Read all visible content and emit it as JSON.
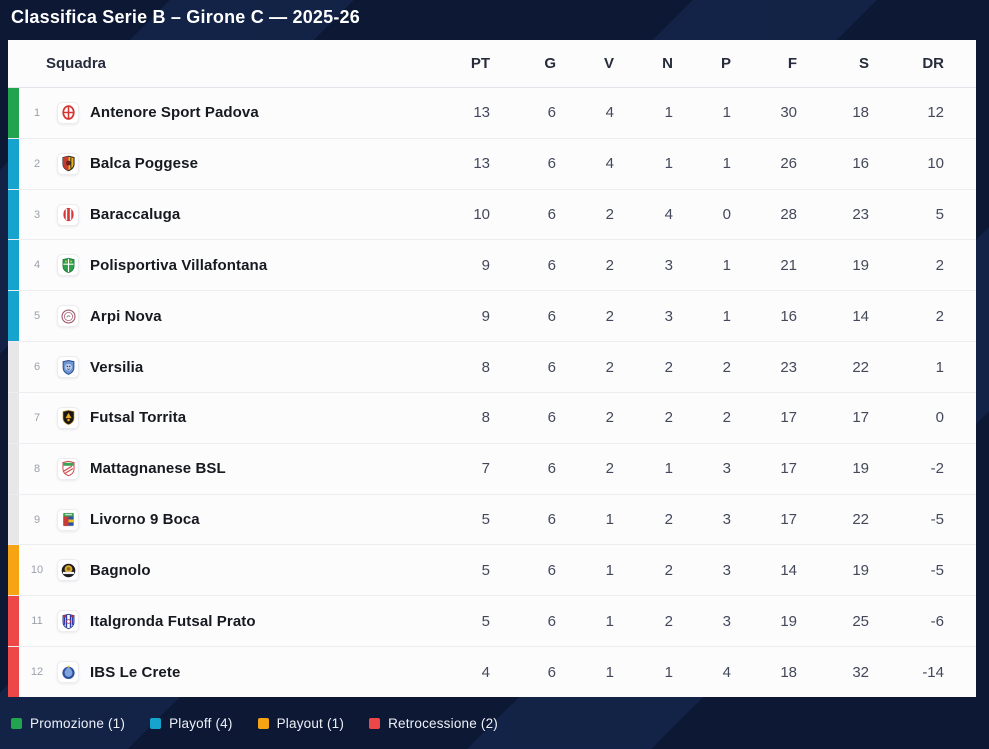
{
  "title": "Classifica Serie B – Girone C — 2025-26",
  "table": {
    "team_header": "Squadra",
    "stat_headers": [
      "PT",
      "G",
      "V",
      "N",
      "P",
      "F",
      "S",
      "DR"
    ],
    "rows": [
      {
        "pos": "1",
        "team": "Antenore Sport Padova",
        "zone": "promozione",
        "logo": "antenore-crest",
        "stats": [
          "13",
          "6",
          "4",
          "1",
          "1",
          "30",
          "18",
          "12"
        ]
      },
      {
        "pos": "2",
        "team": "Balca Poggese",
        "zone": "playoff",
        "logo": "balca-crest",
        "stats": [
          "13",
          "6",
          "4",
          "1",
          "1",
          "26",
          "16",
          "10"
        ]
      },
      {
        "pos": "3",
        "team": "Baraccaluga",
        "zone": "playoff",
        "logo": "baraccaluga-crest",
        "stats": [
          "10",
          "6",
          "2",
          "4",
          "0",
          "28",
          "23",
          "5"
        ]
      },
      {
        "pos": "4",
        "team": "Polisportiva Villafontana",
        "zone": "playoff",
        "logo": "villafontana-crest",
        "stats": [
          "9",
          "6",
          "2",
          "3",
          "1",
          "21",
          "19",
          "2"
        ]
      },
      {
        "pos": "5",
        "team": "Arpi Nova",
        "zone": "playoff",
        "logo": "arpinova-crest",
        "stats": [
          "9",
          "6",
          "2",
          "3",
          "1",
          "16",
          "14",
          "2"
        ]
      },
      {
        "pos": "6",
        "team": "Versilia",
        "zone": "none",
        "logo": "versilia-crest",
        "stats": [
          "8",
          "6",
          "2",
          "2",
          "2",
          "23",
          "22",
          "1"
        ]
      },
      {
        "pos": "7",
        "team": "Futsal Torrita",
        "zone": "none",
        "logo": "torrita-crest",
        "stats": [
          "8",
          "6",
          "2",
          "2",
          "2",
          "17",
          "17",
          "0"
        ]
      },
      {
        "pos": "8",
        "team": "Mattagnanese BSL",
        "zone": "none",
        "logo": "mattagnanese-crest",
        "stats": [
          "7",
          "6",
          "2",
          "1",
          "3",
          "17",
          "19",
          "-2"
        ]
      },
      {
        "pos": "9",
        "team": "Livorno 9 Boca",
        "zone": "none",
        "logo": "livorno-crest",
        "stats": [
          "5",
          "6",
          "1",
          "2",
          "3",
          "17",
          "22",
          "-5"
        ]
      },
      {
        "pos": "10",
        "team": "Bagnolo",
        "zone": "playout",
        "logo": "bagnolo-crest",
        "stats": [
          "5",
          "6",
          "1",
          "2",
          "3",
          "14",
          "19",
          "-5"
        ]
      },
      {
        "pos": "11",
        "team": "Italgronda Futsal Prato",
        "zone": "retrocessione",
        "logo": "italgronda-crest",
        "stats": [
          "5",
          "6",
          "1",
          "2",
          "3",
          "19",
          "25",
          "-6"
        ]
      },
      {
        "pos": "12",
        "team": "IBS Le Crete",
        "zone": "retrocessione",
        "logo": "ibscrete-crest",
        "stats": [
          "4",
          "6",
          "1",
          "1",
          "4",
          "18",
          "32",
          "-14"
        ]
      }
    ]
  },
  "zone_colors": {
    "promozione": "#22a34d",
    "playoff": "#16a4cf",
    "playout": "#f6a413",
    "retrocessione": "#ee4748",
    "none": "#e7e7ea"
  },
  "legend": [
    {
      "label": "Promozione (1)",
      "zone": "promozione"
    },
    {
      "label": "Playoff (4)",
      "zone": "playoff"
    },
    {
      "label": "Playout (1)",
      "zone": "playout"
    },
    {
      "label": "Retrocessione (2)",
      "zone": "retrocessione"
    }
  ]
}
